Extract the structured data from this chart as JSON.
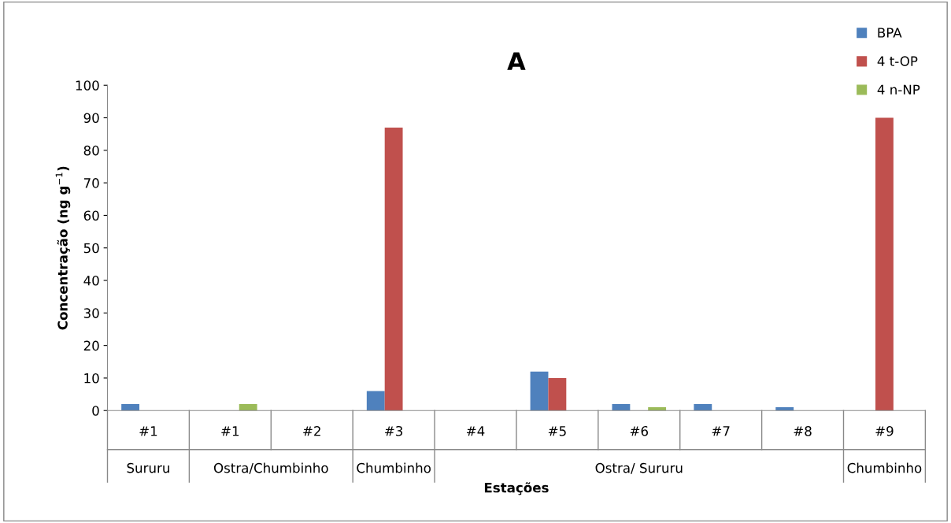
{
  "chart_data": {
    "type": "bar",
    "title": "A",
    "xlabel": "Estações",
    "ylabel": "Concentração (ng g$^{−1}$)",
    "categories": [
      "#1",
      "#1",
      "#2",
      "#3",
      "#4",
      "#5",
      "#6",
      "#7",
      "#8",
      "#9"
    ],
    "series": [
      {
        "name": "BPA",
        "color": "#4f81bd",
        "values": [
          2,
          0,
          0,
          6,
          0,
          12,
          2,
          2,
          1,
          0
        ]
      },
      {
        "name": "4 t-OP",
        "color": "#c0504d",
        "values": [
          0,
          0,
          0,
          87,
          0,
          10,
          0,
          0,
          0,
          90
        ]
      },
      {
        "name": "4 n-NP",
        "color": "#9bbb59",
        "values": [
          0,
          2,
          0,
          0,
          0,
          0,
          1,
          0,
          0,
          0
        ]
      }
    ],
    "annotations": [
      "Sururu",
      "Ostra/Chumbinho",
      "Chumbinho",
      "Ostra/ Sururu",
      "Chumbinho"
    ],
    "ylim": [
      0,
      100
    ],
    "yticks": [
      0,
      10,
      20,
      30,
      40,
      50,
      60,
      70,
      80,
      90,
      100
    ],
    "grid": false,
    "legend": "top right"
  }
}
